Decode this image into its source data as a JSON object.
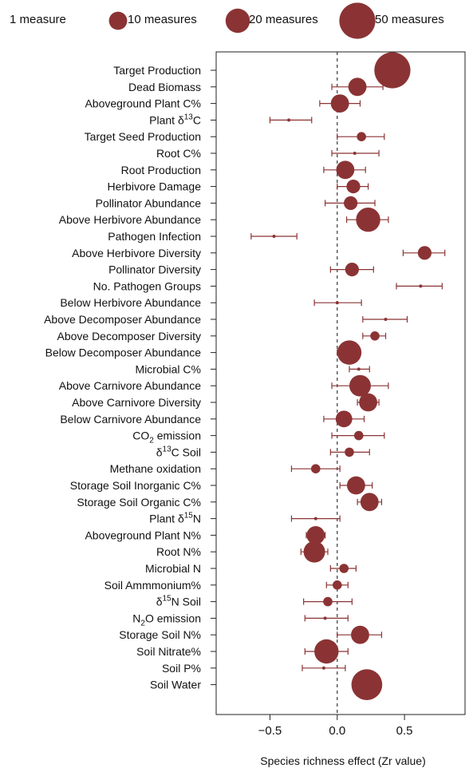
{
  "chart_data": {
    "type": "forest",
    "xlabel": "Species richness effect (Zr value)",
    "xlim": [
      -0.9,
      0.95
    ],
    "xticks": [
      -0.5,
      0.0,
      0.5
    ],
    "xtick_labels": [
      "−0.5",
      "0.0",
      "0.5"
    ],
    "reference_line": 0.0,
    "marker_color": "#8b3334",
    "size_legend": [
      {
        "label": "1 measure",
        "n": 1
      },
      {
        "label": "10 measures",
        "n": 10
      },
      {
        "label": "20 measures",
        "n": 20
      },
      {
        "label": "50 measures",
        "n": 50
      }
    ],
    "rows": [
      {
        "label": "Target Production",
        "mid": 0.41,
        "lo": 0.41,
        "hi": 0.41,
        "n": 50
      },
      {
        "label": "Dead Biomass",
        "mid": 0.15,
        "lo": -0.04,
        "hi": 0.34,
        "n": 10
      },
      {
        "label": "Aboveground Plant C%",
        "mid": 0.02,
        "lo": -0.13,
        "hi": 0.17,
        "n": 10
      },
      {
        "label": "Plant δ¹³C",
        "prefix": "Plant δ",
        "sup": "13",
        "suffix": "C",
        "mid": -0.36,
        "lo": -0.5,
        "hi": -0.19,
        "n": 1
      },
      {
        "label": "Target Seed Production",
        "mid": 0.18,
        "lo": 0.0,
        "hi": 0.35,
        "n": 2
      },
      {
        "label": "Root C%",
        "mid": 0.13,
        "lo": -0.04,
        "hi": 0.31,
        "n": 1
      },
      {
        "label": "Root Production",
        "mid": 0.06,
        "lo": -0.1,
        "hi": 0.21,
        "n": 10
      },
      {
        "label": "Herbivore Damage",
        "mid": 0.12,
        "lo": 0.0,
        "hi": 0.23,
        "n": 5
      },
      {
        "label": "Pollinator Abundance",
        "mid": 0.1,
        "lo": -0.09,
        "hi": 0.28,
        "n": 5
      },
      {
        "label": "Above Herbivore Abundance",
        "mid": 0.23,
        "lo": 0.07,
        "hi": 0.38,
        "n": 20
      },
      {
        "label": "Pathogen Infection",
        "mid": -0.47,
        "lo": -0.64,
        "hi": -0.3,
        "n": 1
      },
      {
        "label": "Above Herbivore Diversity",
        "mid": 0.65,
        "lo": 0.49,
        "hi": 0.8,
        "n": 5
      },
      {
        "label": "Pollinator Diversity",
        "mid": 0.11,
        "lo": -0.05,
        "hi": 0.27,
        "n": 5
      },
      {
        "label": "No. Pathogen Groups",
        "mid": 0.62,
        "lo": 0.44,
        "hi": 0.78,
        "n": 1
      },
      {
        "label": "Below Herbivore Abundance",
        "mid": 0.0,
        "lo": -0.17,
        "hi": 0.18,
        "n": 1
      },
      {
        "label": "Above Decomposer Abundance",
        "mid": 0.36,
        "lo": 0.19,
        "hi": 0.52,
        "n": 1
      },
      {
        "label": "Above Decomposer Diversity",
        "mid": 0.28,
        "lo": 0.19,
        "hi": 0.36,
        "n": 2
      },
      {
        "label": "Below Decomposer Abundance",
        "mid": 0.09,
        "lo": 0.0,
        "hi": 0.17,
        "n": 20
      },
      {
        "label": "Microbial C%",
        "mid": 0.16,
        "lo": 0.09,
        "hi": 0.24,
        "n": 1
      },
      {
        "label": "Above Carnivore Abundance",
        "mid": 0.17,
        "lo": -0.04,
        "hi": 0.38,
        "n": 15
      },
      {
        "label": "Above Carnivore Diversity",
        "mid": 0.23,
        "lo": 0.15,
        "hi": 0.31,
        "n": 10
      },
      {
        "label": "Below Carnivore Abundance",
        "mid": 0.05,
        "lo": -0.1,
        "hi": 0.2,
        "n": 8
      },
      {
        "label": "CO₂ emission",
        "prefix": "CO",
        "sub": "2",
        "suffix": " emission",
        "mid": 0.16,
        "lo": -0.04,
        "hi": 0.35,
        "n": 2
      },
      {
        "label": "δ¹³C Soil",
        "prefix": "δ",
        "sup": "13",
        "suffix": "C Soil",
        "mid": 0.09,
        "lo": -0.05,
        "hi": 0.24,
        "n": 2
      },
      {
        "label": "Methane oxidation",
        "mid": -0.16,
        "lo": -0.34,
        "hi": 0.02,
        "n": 2
      },
      {
        "label": "Storage Soil Inorganic C%",
        "mid": 0.14,
        "lo": 0.02,
        "hi": 0.26,
        "n": 10
      },
      {
        "label": "Storage Soil Organic C%",
        "mid": 0.24,
        "lo": 0.15,
        "hi": 0.33,
        "n": 10
      },
      {
        "label": "Plant δ¹⁵N",
        "prefix": "Plant δ",
        "sup": "15",
        "suffix": "N",
        "mid": -0.16,
        "lo": -0.34,
        "hi": 0.02,
        "n": 1
      },
      {
        "label": "Aboveground Plant N%",
        "mid": -0.16,
        "lo": -0.23,
        "hi": -0.09,
        "n": 10
      },
      {
        "label": "Root N%",
        "mid": -0.17,
        "lo": -0.27,
        "hi": -0.07,
        "n": 15
      },
      {
        "label": "Microbial N",
        "mid": 0.05,
        "lo": -0.05,
        "hi": 0.14,
        "n": 2
      },
      {
        "label": "Soil Ammmonium%",
        "mid": 0.0,
        "lo": -0.08,
        "hi": 0.08,
        "n": 2
      },
      {
        "label": "δ¹⁵N Soil",
        "prefix": "δ",
        "sup": "15",
        "suffix": "N Soil",
        "mid": -0.07,
        "lo": -0.25,
        "hi": 0.11,
        "n": 2
      },
      {
        "label": "N₂O emission",
        "prefix": "N",
        "sub": "2",
        "suffix": "O emission",
        "mid": -0.09,
        "lo": -0.24,
        "hi": 0.08,
        "n": 1
      },
      {
        "label": "Storage Soil N%",
        "mid": 0.17,
        "lo": 0.0,
        "hi": 0.33,
        "n": 10
      },
      {
        "label": "Soil  Nitrate%",
        "mid": -0.08,
        "lo": -0.24,
        "hi": 0.08,
        "n": 20
      },
      {
        "label": "Soil P%",
        "mid": -0.1,
        "lo": -0.26,
        "hi": 0.06,
        "n": 1
      },
      {
        "label": "Soil Water",
        "mid": 0.22,
        "lo": 0.22,
        "hi": 0.22,
        "n": 35
      }
    ]
  }
}
